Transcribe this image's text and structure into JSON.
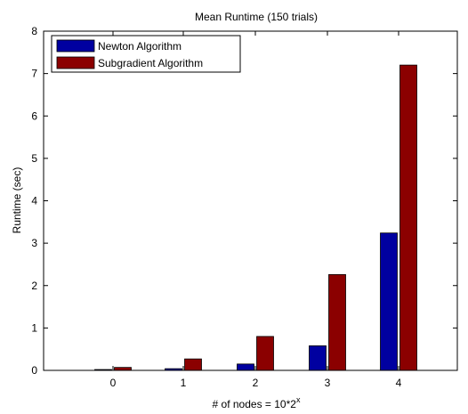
{
  "chart_data": {
    "type": "bar",
    "title": "Mean Runtime (150 trials)",
    "xlabel": "# of nodes = 10*2",
    "xlabel_superscript": "x",
    "ylabel": "Runtime (sec)",
    "categories": [
      "0",
      "1",
      "2",
      "3",
      "4"
    ],
    "ylim": [
      0,
      8
    ],
    "yticks": [
      "0",
      "1",
      "2",
      "3",
      "4",
      "5",
      "6",
      "7",
      "8"
    ],
    "grid": false,
    "legend_position": "top-left",
    "series": [
      {
        "name": "Newton Algorithm",
        "color": "#0000a0",
        "values": [
          0.02,
          0.04,
          0.15,
          0.58,
          3.24
        ]
      },
      {
        "name": "Subgradient Algorithm",
        "color": "#8b0000",
        "values": [
          0.07,
          0.27,
          0.8,
          2.26,
          7.2
        ]
      }
    ]
  }
}
